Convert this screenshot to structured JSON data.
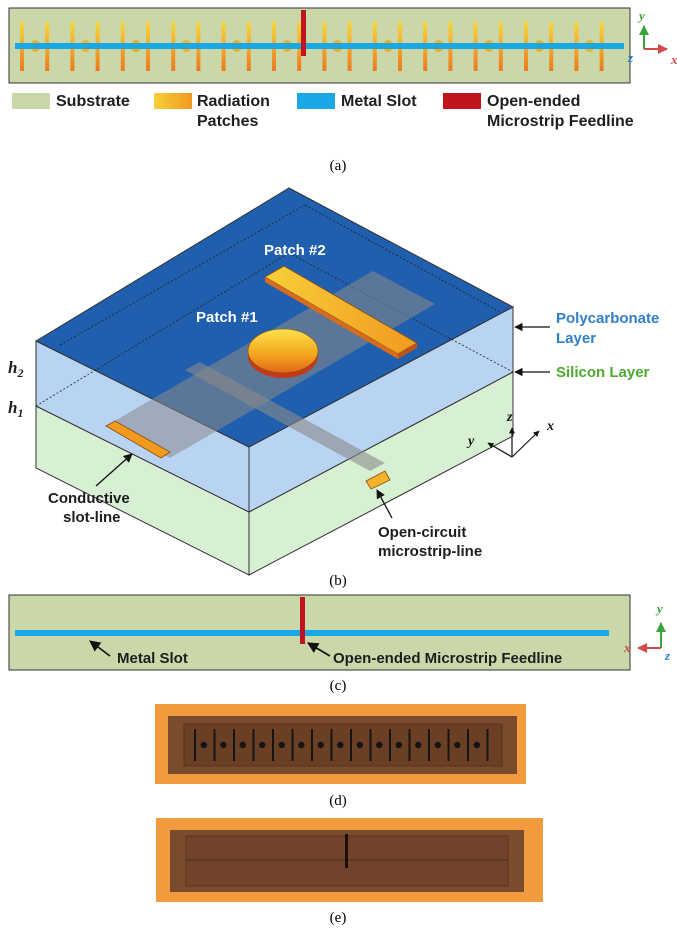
{
  "colors": {
    "substrate": "#c9d7a9",
    "metal_slot": "#1aa7e6",
    "feedline": "#c0151d",
    "patch_gold": "#f3b21a",
    "top_blue": "#1f5fae",
    "poly_layer": "#b9d3f3",
    "silicon_layer": "#d7efd2",
    "board_orange": "#f39a3f",
    "board_dark": "#7a4b2d",
    "axis_y": "#3aa43a",
    "axis_x": "#d24b4b",
    "axis_z": "#2f7fc9"
  },
  "panel_a": {
    "axes": {
      "y": "y",
      "z": "z",
      "x": "x"
    },
    "legend": [
      {
        "key": "substrate",
        "label_lines": [
          "Substrate"
        ]
      },
      {
        "key": "radiation_patches",
        "label_lines": [
          "Radiation",
          "Patches"
        ]
      },
      {
        "key": "metal_slot",
        "label_lines": [
          "Metal Slot"
        ]
      },
      {
        "key": "feedline",
        "label_lines": [
          "Open-ended",
          "Microstrip Feedline"
        ]
      }
    ],
    "caption": "(a)"
  },
  "panel_b": {
    "patch1": "Patch #1",
    "patch2": "Patch #2",
    "poly_lines": [
      "Polycarbonate",
      "Layer"
    ],
    "silicon": "Silicon Layer",
    "h2": "h",
    "h2_sub": "2",
    "h1": "h",
    "h1_sub": "1",
    "slot_lines": [
      "Conductive",
      "slot-line"
    ],
    "micro_lines": [
      "Open-circuit",
      "microstrip-line"
    ],
    "axes": {
      "z": "z",
      "y": "y",
      "x": "x"
    },
    "caption": "(b)"
  },
  "panel_c": {
    "metal_slot": "Metal Slot",
    "feedline": "Open-ended Microstrip Feedline",
    "axes": {
      "y": "y",
      "x": "x",
      "z": "z"
    },
    "caption": "(c)"
  },
  "panel_d": {
    "caption": "(d)"
  },
  "panel_e": {
    "caption": "(e)"
  }
}
